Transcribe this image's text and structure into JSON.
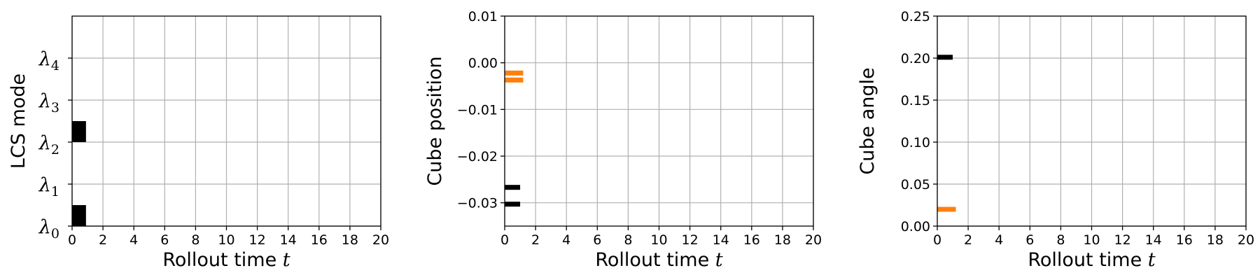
{
  "chart_data": [
    {
      "type": "bar",
      "id": "lcs-mode",
      "ylabel": "LCS mode",
      "xlabel_prefix": "Rollout time ",
      "xlabel_var": "t",
      "xlim": [
        0,
        20
      ],
      "ylim": [
        0,
        5
      ],
      "xticks": [
        "0",
        "2",
        "4",
        "6",
        "8",
        "10",
        "12",
        "14",
        "16",
        "18",
        "20"
      ],
      "yticks": [
        {
          "value": 0,
          "symbol": "λ",
          "sub": "0"
        },
        {
          "value": 1,
          "symbol": "λ",
          "sub": "1"
        },
        {
          "value": 2,
          "symbol": "λ",
          "sub": "2"
        },
        {
          "value": 3,
          "symbol": "λ",
          "sub": "3"
        },
        {
          "value": 4,
          "symbol": "λ",
          "sub": "4"
        }
      ],
      "bars": [
        {
          "x0": 0,
          "x1": 0.9,
          "y0": 0,
          "y1": 0.5,
          "color": "#000000"
        },
        {
          "x0": 0,
          "x1": 0.9,
          "y0": 2,
          "y1": 2.5,
          "color": "#000000"
        }
      ]
    },
    {
      "type": "line",
      "id": "cube-position",
      "ylabel": "Cube position",
      "xlabel_prefix": "Rollout time ",
      "xlabel_var": "t",
      "xlim": [
        0,
        20
      ],
      "ylim": [
        -0.035,
        0.01
      ],
      "xticks": [
        "0",
        "2",
        "4",
        "6",
        "8",
        "10",
        "12",
        "14",
        "16",
        "18",
        "20"
      ],
      "yticks": [
        {
          "value": 0.01,
          "label": "0.01"
        },
        {
          "value": 0.0,
          "label": "0.00"
        },
        {
          "value": -0.01,
          "label": "−0.01"
        },
        {
          "value": -0.02,
          "label": "−0.02"
        },
        {
          "value": -0.03,
          "label": "−0.03"
        }
      ],
      "series": [
        {
          "color": "#000000",
          "segments": [
            {
              "x0": 0,
              "x1": 1,
              "y": -0.0267
            },
            {
              "x0": 0,
              "x1": 1,
              "y": -0.0303
            }
          ]
        },
        {
          "color": "#ff7f0e",
          "segments": [
            {
              "x0": 0,
              "x1": 1.2,
              "y": -0.0022
            },
            {
              "x0": 0,
              "x1": 1.2,
              "y": -0.0037
            }
          ]
        }
      ]
    },
    {
      "type": "line",
      "id": "cube-angle",
      "ylabel": "Cube angle",
      "xlabel_prefix": "Rollout time ",
      "xlabel_var": "t",
      "xlim": [
        0,
        20
      ],
      "ylim": [
        0,
        0.25
      ],
      "xticks": [
        "0",
        "2",
        "4",
        "6",
        "8",
        "10",
        "12",
        "14",
        "16",
        "18",
        "20"
      ],
      "yticks": [
        {
          "value": 0.25,
          "label": "0.25"
        },
        {
          "value": 0.2,
          "label": "0.20"
        },
        {
          "value": 0.15,
          "label": "0.15"
        },
        {
          "value": 0.1,
          "label": "0.10"
        },
        {
          "value": 0.05,
          "label": "0.05"
        },
        {
          "value": 0.0,
          "label": "0.00"
        }
      ],
      "series": [
        {
          "color": "#000000",
          "segments": [
            {
              "x0": 0,
              "x1": 1,
              "y": 0.201
            }
          ]
        },
        {
          "color": "#ff7f0e",
          "segments": [
            {
              "x0": 0,
              "x1": 1.2,
              "y": 0.02
            }
          ]
        }
      ]
    }
  ]
}
